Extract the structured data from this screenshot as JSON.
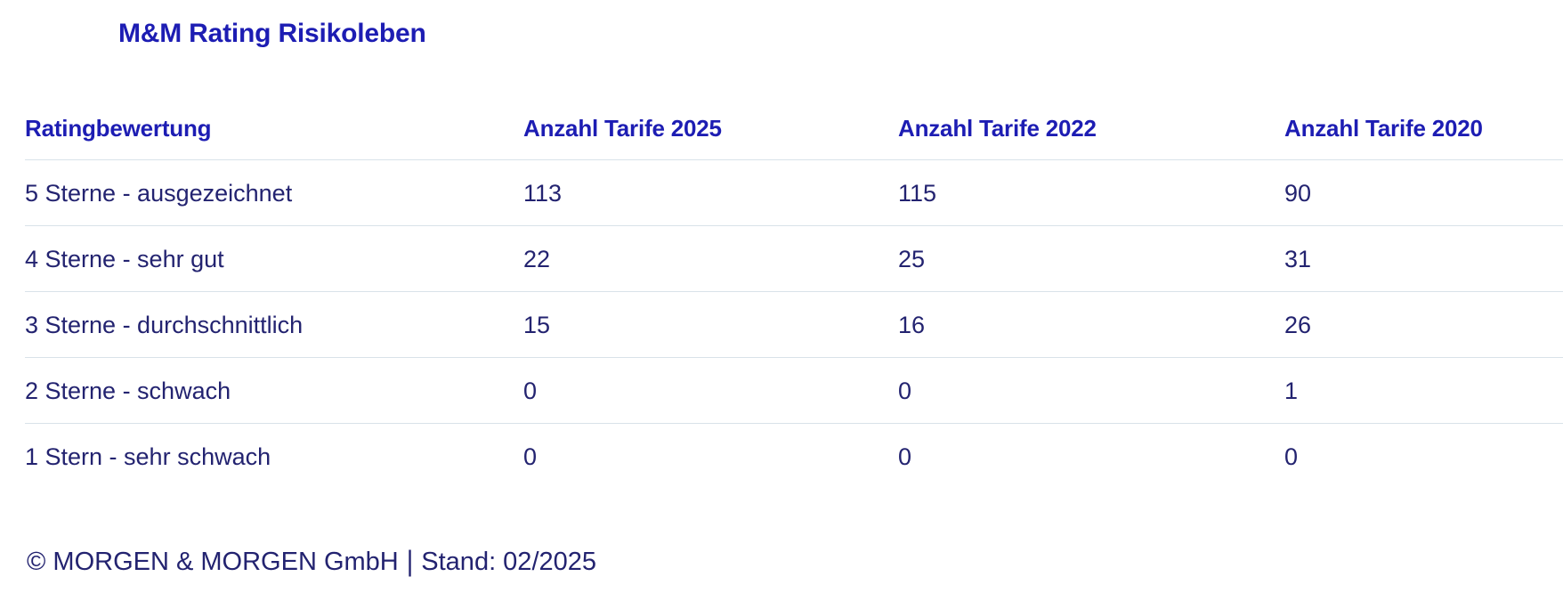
{
  "page": {
    "title": "M&M Rating Risikoleben"
  },
  "table": {
    "columns": [
      "Ratingbewertung",
      "Anzahl Tarife 2025",
      "Anzahl Tarife 2022",
      "Anzahl Tarife 2020"
    ],
    "rows": [
      [
        "5 Sterne - ausgezeichnet",
        "113",
        "115",
        "90"
      ],
      [
        "4 Sterne - sehr gut",
        "22",
        "25",
        "31"
      ],
      [
        "3 Sterne - durchschnittlich",
        "15",
        "16",
        "26"
      ],
      [
        "2 Sterne - schwach",
        "0",
        "0",
        "1"
      ],
      [
        "1 Stern - sehr schwach",
        "0",
        "0",
        "0"
      ]
    ]
  },
  "footer": {
    "copyright": "© MORGEN & MORGEN GmbH",
    "separator": "|",
    "stand": "Stand: 02/2025"
  },
  "colors": {
    "accent_blue": "#1d1db3",
    "body_navy": "#232370",
    "divider": "#d9e2e9"
  },
  "chart_data": {
    "type": "table",
    "title": "M&M Rating Risikoleben",
    "columns": [
      "Ratingbewertung",
      "Anzahl Tarife 2025",
      "Anzahl Tarife 2022",
      "Anzahl Tarife 2020"
    ],
    "rows": [
      {
        "rating": "5 Sterne - ausgezeichnet",
        "tarife_2025": 113,
        "tarife_2022": 115,
        "tarife_2020": 90
      },
      {
        "rating": "4 Sterne - sehr gut",
        "tarife_2025": 22,
        "tarife_2022": 25,
        "tarife_2020": 31
      },
      {
        "rating": "3 Sterne - durchschnittlich",
        "tarife_2025": 15,
        "tarife_2022": 16,
        "tarife_2020": 26
      },
      {
        "rating": "2 Sterne - schwach",
        "tarife_2025": 0,
        "tarife_2022": 0,
        "tarife_2020": 1
      },
      {
        "rating": "1 Stern - sehr schwach",
        "tarife_2025": 0,
        "tarife_2022": 0,
        "tarife_2020": 0
      }
    ],
    "footnote": "© MORGEN & MORGEN GmbH | Stand: 02/2025"
  }
}
